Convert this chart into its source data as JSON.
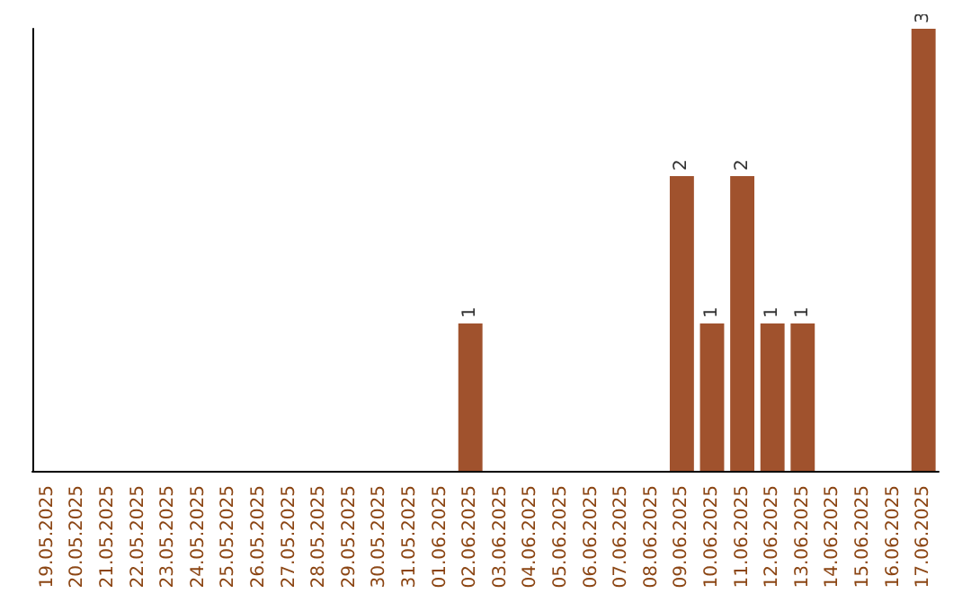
{
  "chart_data": {
    "type": "bar",
    "categories": [
      "19.05.2025",
      "20.05.2025",
      "21.05.2025",
      "22.05.2025",
      "23.05.2025",
      "24.05.2025",
      "25.05.2025",
      "26.05.2025",
      "27.05.2025",
      "28.05.2025",
      "29.05.2025",
      "30.05.2025",
      "31.05.2025",
      "01.06.2025",
      "02.06.2025",
      "03.06.2025",
      "04.06.2025",
      "05.06.2025",
      "06.06.2025",
      "07.06.2025",
      "08.06.2025",
      "09.06.2025",
      "10.06.2025",
      "11.06.2025",
      "12.06.2025",
      "13.06.2025",
      "14.06.2025",
      "15.06.2025",
      "16.06.2025",
      "17.06.2025"
    ],
    "values": [
      null,
      null,
      null,
      null,
      null,
      null,
      null,
      null,
      null,
      null,
      null,
      null,
      null,
      null,
      1,
      null,
      null,
      null,
      null,
      null,
      null,
      2,
      1,
      2,
      1,
      1,
      null,
      null,
      null,
      3
    ],
    "color": "#a0522d",
    "data_labels": true,
    "tick_labels": "x",
    "grid": false
  }
}
